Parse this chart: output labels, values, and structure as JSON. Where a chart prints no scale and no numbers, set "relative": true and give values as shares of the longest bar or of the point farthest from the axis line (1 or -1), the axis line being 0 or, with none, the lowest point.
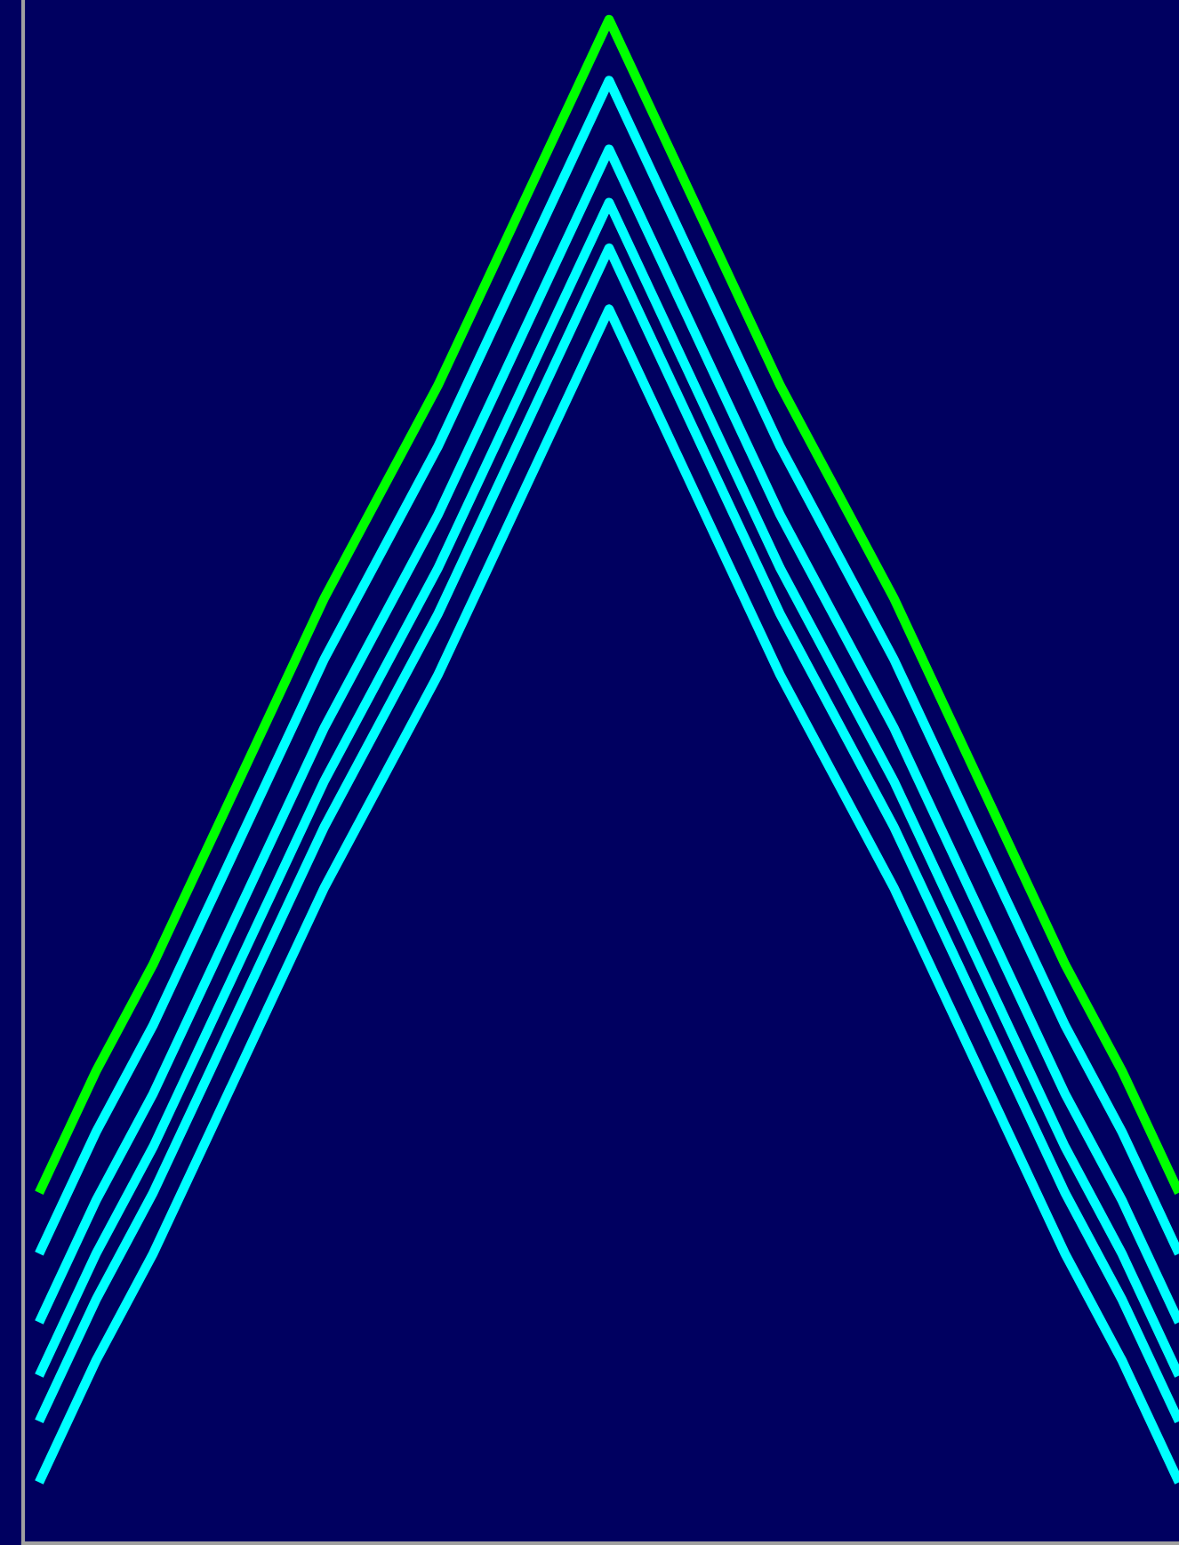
{
  "chart_data": {
    "type": "line",
    "relative": true,
    "categories": [
      null,
      null,
      null,
      null,
      null,
      null,
      null,
      null,
      null,
      null,
      null,
      null,
      null,
      null,
      null,
      null,
      null,
      null,
      null,
      null,
      null
    ],
    "series": [
      {
        "color": "#00ff00",
        "values": [
          0.23,
          0.31,
          0.38,
          0.46,
          0.54,
          0.62,
          0.69,
          0.76,
          0.84,
          0.92,
          1.0,
          0.92,
          0.84,
          0.76,
          0.69,
          0.62,
          0.54,
          0.46,
          0.38,
          0.31,
          0.23
        ]
      },
      {
        "color": "#00ffff",
        "values": [
          0.19,
          0.27,
          0.34,
          0.42,
          0.5,
          0.58,
          0.65,
          0.72,
          0.8,
          0.88,
          0.96,
          0.88,
          0.8,
          0.72,
          0.65,
          0.58,
          0.5,
          0.42,
          0.34,
          0.27,
          0.19
        ]
      },
      {
        "color": "#00ffff",
        "values": [
          0.145,
          0.225,
          0.295,
          0.375,
          0.455,
          0.535,
          0.605,
          0.675,
          0.755,
          0.835,
          0.915,
          0.835,
          0.755,
          0.675,
          0.605,
          0.535,
          0.455,
          0.375,
          0.295,
          0.225,
          0.145
        ]
      },
      {
        "color": "#00ffff",
        "values": [
          0.11,
          0.19,
          0.26,
          0.34,
          0.42,
          0.5,
          0.57,
          0.64,
          0.72,
          0.8,
          0.88,
          0.8,
          0.72,
          0.64,
          0.57,
          0.5,
          0.42,
          0.34,
          0.26,
          0.19,
          0.11
        ]
      },
      {
        "color": "#00ffff",
        "values": [
          0.08,
          0.16,
          0.23,
          0.31,
          0.39,
          0.47,
          0.54,
          0.61,
          0.69,
          0.77,
          0.85,
          0.77,
          0.69,
          0.61,
          0.54,
          0.47,
          0.39,
          0.31,
          0.23,
          0.16,
          0.08
        ]
      },
      {
        "color": "#00ffff",
        "values": [
          0.04,
          0.12,
          0.19,
          0.27,
          0.35,
          0.43,
          0.5,
          0.57,
          0.65,
          0.73,
          0.81,
          0.73,
          0.65,
          0.57,
          0.5,
          0.43,
          0.35,
          0.27,
          0.19,
          0.12,
          0.04
        ]
      }
    ]
  }
}
